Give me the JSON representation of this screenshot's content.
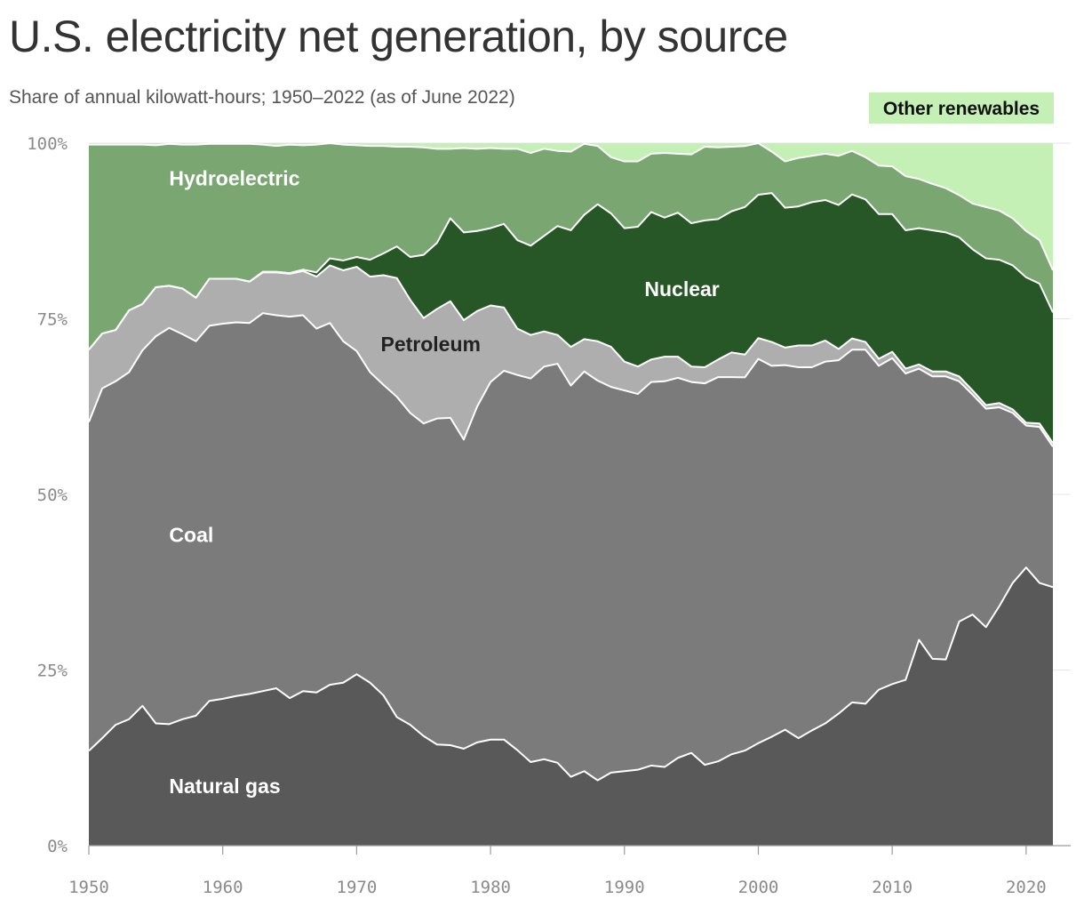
{
  "title": "U.S. electricity net generation, by source",
  "subtitle": "Share of annual kilowatt-hours; 1950–2022 (as of June 2022)",
  "legend": {
    "label": "Other renewables",
    "color": "#c4efb5"
  },
  "chart_data": {
    "type": "area",
    "stacked": true,
    "x": [
      1950,
      1951,
      1952,
      1953,
      1954,
      1955,
      1956,
      1957,
      1958,
      1959,
      1960,
      1961,
      1962,
      1963,
      1964,
      1965,
      1966,
      1967,
      1968,
      1969,
      1970,
      1971,
      1972,
      1973,
      1974,
      1975,
      1976,
      1977,
      1978,
      1979,
      1980,
      1981,
      1982,
      1983,
      1984,
      1985,
      1986,
      1987,
      1988,
      1989,
      1990,
      1991,
      1992,
      1993,
      1994,
      1995,
      1996,
      1997,
      1998,
      1999,
      2000,
      2001,
      2002,
      2003,
      2004,
      2005,
      2006,
      2007,
      2008,
      2009,
      2010,
      2011,
      2012,
      2013,
      2014,
      2015,
      2016,
      2017,
      2018,
      2019,
      2020,
      2021,
      2022
    ],
    "ylim": [
      0,
      100
    ],
    "xlim": [
      1950,
      2022
    ],
    "y_ticks": [
      0,
      25,
      50,
      75,
      100
    ],
    "y_tick_labels": [
      "0%",
      "25%",
      "50%",
      "75%",
      "100%"
    ],
    "x_ticks": [
      1950,
      1960,
      1970,
      1980,
      1990,
      2000,
      2010,
      2020
    ],
    "x_tick_labels": [
      "1950",
      "1960",
      "1970",
      "1980",
      "1990",
      "2000",
      "2010",
      "2020"
    ],
    "grid": true,
    "series": [
      {
        "name": "Natural gas",
        "color": "#595959",
        "label_color": "#ffffff",
        "values": [
          13.5,
          15.3,
          17.2,
          18.0,
          19.9,
          17.4,
          17.3,
          18.0,
          18.5,
          20.6,
          20.9,
          21.3,
          21.6,
          22.0,
          22.4,
          21.0,
          22.0,
          21.8,
          22.9,
          23.2,
          24.4,
          23.2,
          21.4,
          18.3,
          17.2,
          15.6,
          14.4,
          14.3,
          13.8,
          14.7,
          15.1,
          15.1,
          13.6,
          11.9,
          12.3,
          11.8,
          9.8,
          10.6,
          9.3,
          10.4,
          10.6,
          10.8,
          11.4,
          11.2,
          12.5,
          13.2,
          11.5,
          12.0,
          13.0,
          13.4,
          14.3,
          15.5,
          16.5,
          15.3,
          16.4,
          17.4,
          18.8,
          20.4,
          20.2,
          22.2,
          23.0,
          23.6,
          29.3,
          26.6,
          26.5,
          31.9,
          32.9,
          31.1,
          34.1,
          37.4,
          39.6,
          37.4,
          36.8
        ]
      },
      {
        "name": "Coal",
        "color": "#7b7b7b",
        "label_color": "#ffffff",
        "values": [
          46.8,
          49.8,
          48.9,
          49.4,
          50.6,
          55.1,
          56.4,
          54.8,
          53.3,
          53.4,
          53.4,
          53.2,
          52.8,
          53.8,
          53.1,
          54.3,
          53.5,
          51.8,
          51.5,
          48.6,
          46.0,
          44.2,
          44.2,
          45.6,
          44.4,
          44.5,
          46.4,
          46.6,
          44.0,
          47.8,
          50.9,
          52.5,
          53.4,
          54.6,
          55.9,
          56.8,
          55.7,
          56.9,
          56.9,
          54.9,
          54.2,
          53.5,
          54.6,
          54.9,
          54.1,
          52.8,
          54.3,
          54.7,
          53.7,
          52.6,
          53.6,
          52.8,
          51.9,
          52.8,
          51.7,
          51.5,
          50.3,
          50.2,
          50.4,
          46.1,
          46.4,
          43.6,
          38.6,
          40.2,
          40.3,
          34.2,
          31.3,
          31.1,
          28.3,
          24.2,
          20.2,
          22.2,
          20.0
        ]
      },
      {
        "name": "Petroleum",
        "color": "#aeaeae",
        "label_color": "#222222",
        "values": [
          10.3,
          7.8,
          7.3,
          8.8,
          6.6,
          7.0,
          6.0,
          6.5,
          6.2,
          6.7,
          6.4,
          6.2,
          5.9,
          5.8,
          6.1,
          6.1,
          6.3,
          7.4,
          8.2,
          10.1,
          12.0,
          13.6,
          15.6,
          16.9,
          16.1,
          15.0,
          15.6,
          16.6,
          17.0,
          13.6,
          10.9,
          9.0,
          6.6,
          6.2,
          5.0,
          4.1,
          5.5,
          4.6,
          5.6,
          5.7,
          4.1,
          3.9,
          3.2,
          3.5,
          3.0,
          2.2,
          2.3,
          2.5,
          3.5,
          3.2,
          2.9,
          3.4,
          2.5,
          3.1,
          3.1,
          3.0,
          1.6,
          1.6,
          1.1,
          1.0,
          0.9,
          0.7,
          0.6,
          0.7,
          0.7,
          0.7,
          0.6,
          0.5,
          0.6,
          0.5,
          0.4,
          0.5,
          0.5
        ]
      },
      {
        "name": "Nuclear",
        "color": "#275726",
        "label_color": "#ffffff",
        "values": [
          0,
          0,
          0,
          0,
          0,
          0,
          0,
          0,
          0,
          0,
          0,
          0,
          0,
          0.1,
          0.1,
          0.1,
          0.2,
          0.6,
          1.0,
          1.4,
          1.4,
          2.4,
          3.1,
          4.5,
          6.1,
          9.0,
          9.4,
          11.8,
          12.5,
          11.4,
          11.0,
          11.9,
          12.6,
          12.7,
          13.6,
          15.5,
          16.6,
          17.7,
          19.5,
          19.0,
          19.0,
          19.9,
          21.0,
          19.8,
          20.5,
          20.4,
          20.9,
          20.0,
          20.1,
          20.8,
          20.0,
          21.2,
          19.9,
          19.8,
          20.4,
          20.0,
          20.5,
          20.5,
          20.3,
          20.6,
          19.6,
          19.7,
          19.4,
          20.1,
          19.8,
          19.8,
          20.1,
          20.9,
          20.4,
          20.5,
          20.7,
          19.9,
          18.6
        ]
      },
      {
        "name": "Hydroelectric",
        "color": "#79a671",
        "label_color": "#ffffff",
        "values": [
          29.2,
          26.9,
          26.4,
          23.6,
          22.7,
          20.2,
          20.2,
          20.5,
          21.8,
          19.2,
          19.2,
          19.2,
          19.6,
          18.1,
          17.9,
          18.3,
          17.7,
          18.2,
          16.4,
          16.5,
          15.9,
          16.2,
          15.3,
          14.2,
          15.7,
          15.3,
          13.4,
          9.9,
          12.0,
          11.7,
          11.4,
          10.7,
          13.0,
          13.2,
          12.4,
          10.7,
          11.2,
          10.1,
          8.3,
          8.0,
          9.5,
          9.3,
          8.3,
          9.2,
          8.4,
          9.8,
          10.5,
          10.2,
          9.2,
          8.6,
          7.2,
          5.9,
          6.6,
          6.9,
          6.6,
          6.6,
          7.0,
          6.2,
          6.0,
          6.9,
          6.8,
          7.7,
          7.0,
          6.6,
          6.3,
          6.0,
          6.5,
          7.3,
          7.0,
          6.7,
          6.6,
          6.2,
          6.0
        ]
      },
      {
        "name": "Other renewables",
        "color": "#c4efb5",
        "label_color": "#111111",
        "values": [
          0.2,
          0.2,
          0.2,
          0.2,
          0.2,
          0.3,
          0.1,
          0.2,
          0.2,
          0.1,
          0.1,
          0.1,
          0.1,
          0.2,
          0.4,
          0.2,
          0.3,
          0.2,
          0.0,
          0.2,
          0.3,
          0.4,
          0.4,
          0.5,
          0.5,
          0.6,
          0.8,
          0.8,
          0.7,
          0.8,
          0.7,
          0.8,
          0.8,
          1.4,
          0.8,
          1.1,
          1.2,
          0.1,
          0.4,
          2.0,
          2.6,
          2.6,
          1.5,
          1.4,
          1.5,
          1.6,
          0.5,
          0.6,
          0.5,
          0.4,
          0.0,
          1.2,
          2.6,
          2.1,
          1.8,
          1.5,
          1.8,
          1.1,
          2.0,
          3.2,
          3.3,
          4.7,
          5.1,
          5.8,
          6.4,
          7.4,
          8.6,
          9.1,
          9.6,
          10.7,
          12.5,
          13.8,
          18.1
        ]
      }
    ],
    "labels": [
      {
        "series": "Hydroelectric",
        "text": "Hydroelectric",
        "x": 1956,
        "y": 94
      },
      {
        "series": "Nuclear",
        "text": "Nuclear",
        "x": 1991.5,
        "y": 78.2
      },
      {
        "series": "Petroleum",
        "text": "Petroleum",
        "x": 1971.8,
        "y": 70.4
      },
      {
        "series": "Coal",
        "text": "Coal",
        "x": 1956,
        "y": 43.2
      },
      {
        "series": "Natural gas",
        "text": "Natural gas",
        "x": 1956,
        "y": 7.5
      }
    ]
  }
}
